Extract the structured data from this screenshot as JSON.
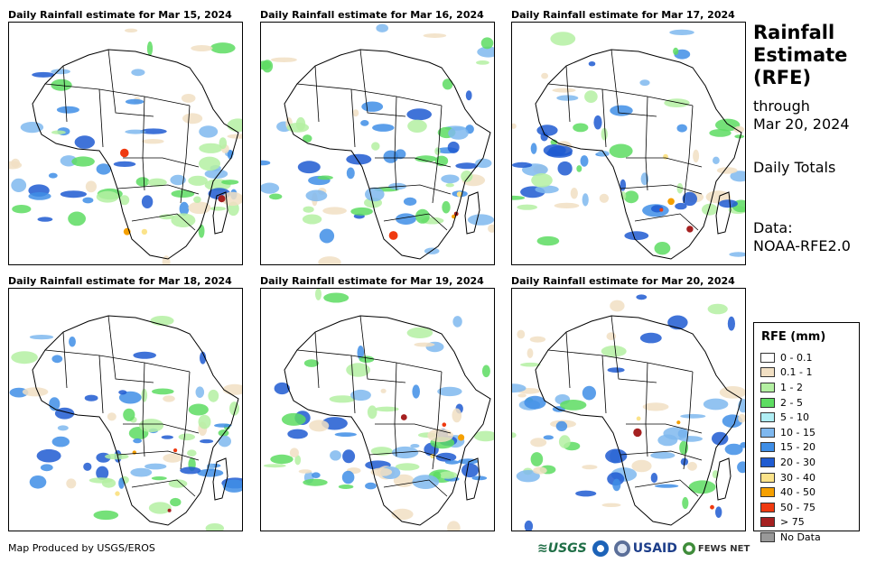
{
  "panels": [
    {
      "title": "Daily Rainfall estimate for Mar 15, 2024"
    },
    {
      "title": "Daily Rainfall estimate for Mar 16, 2024"
    },
    {
      "title": "Daily Rainfall estimate for Mar 17, 2024"
    },
    {
      "title": "Daily Rainfall estimate for Mar 18, 2024"
    },
    {
      "title": "Daily Rainfall estimate for Mar 19, 2024"
    },
    {
      "title": "Daily Rainfall estimate for Mar 20, 2024"
    }
  ],
  "side": {
    "title": "Rainfall\nEstimate\n(RFE)",
    "through": "through\nMar 20, 2024",
    "totals": "Daily Totals",
    "data_source": "Data:\nNOAA-RFE2.0"
  },
  "legend": {
    "title": "RFE (mm)",
    "items": [
      {
        "label": "0 - 0.1",
        "color": "#ffffff"
      },
      {
        "label": "0.1 - 1",
        "color": "#f1dfc3"
      },
      {
        "label": "1 - 2",
        "color": "#b4f0a2"
      },
      {
        "label": "2 - 5",
        "color": "#5ddc61"
      },
      {
        "label": "5 - 10",
        "color": "#b0eef4"
      },
      {
        "label": "10 - 15",
        "color": "#7fb8ef"
      },
      {
        "label": "15 - 20",
        "color": "#3f8ee6"
      },
      {
        "label": "20 - 30",
        "color": "#1f5bd1"
      },
      {
        "label": "30 - 40",
        "color": "#fbe38a"
      },
      {
        "label": "40 - 50",
        "color": "#f5a000"
      },
      {
        "label": "50 - 75",
        "color": "#ef3a10"
      },
      {
        "label": "> 75",
        "color": "#a52020"
      },
      {
        "label": "No Data",
        "color": "#999999"
      }
    ]
  },
  "footer": {
    "credit": "Map Produced by USGS/EROS",
    "logos": {
      "usgs": "≋USGS",
      "usaid": "USAID",
      "fews": "FEWS NET"
    }
  }
}
